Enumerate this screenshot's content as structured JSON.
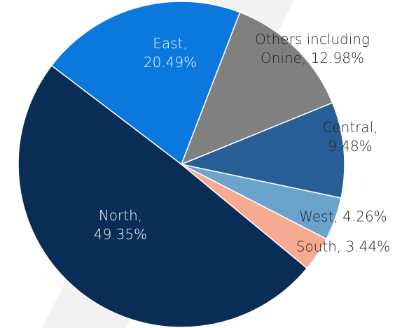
{
  "chart_data": {
    "type": "pie",
    "categories": [
      "East,",
      "Others including Onine,",
      "Central,",
      "West,",
      "South,",
      "North,"
    ],
    "values": [
      20.49,
      12.98,
      9.48,
      4.26,
      3.44,
      49.35
    ],
    "value_labels": [
      "20.49%",
      "12.98%",
      "9.48%",
      "4.26%",
      "3.44%",
      "49.35%"
    ],
    "colors": [
      "#0b78de",
      "#808080",
      "#285e95",
      "#6aa4cb",
      "#f6aa91",
      "#0a2d56"
    ]
  }
}
